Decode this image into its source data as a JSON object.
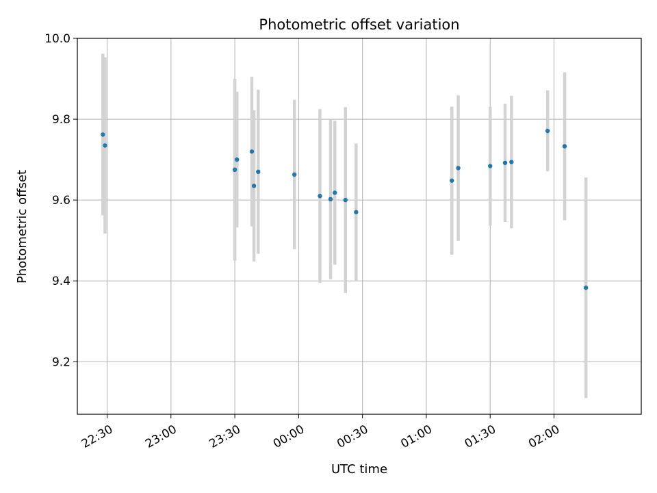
{
  "chart_data": {
    "type": "scatter",
    "title": "Photometric offset variation",
    "xlabel": "UTC time",
    "ylabel": "Photometric offset",
    "x_unit": "time",
    "xlim": [
      "22:16",
      "02:41"
    ],
    "ylim": [
      9.07,
      10.0
    ],
    "x_ticks": [
      "22:30",
      "23:00",
      "23:30",
      "00:00",
      "00:30",
      "01:00",
      "01:30",
      "02:00"
    ],
    "y_ticks": [
      9.2,
      9.4,
      9.6,
      9.8,
      10.0
    ],
    "y_tick_labels": [
      "9.2",
      "9.4",
      "9.6",
      "9.8",
      "10.0"
    ],
    "grid": true,
    "marker_color": "#1f77b4",
    "errorbar_color": "#d3d3d3",
    "points": [
      {
        "x": "22:28",
        "y": 9.762,
        "yerr": 0.2
      },
      {
        "x": "22:29",
        "y": 9.735,
        "yerr": 0.218
      },
      {
        "x": "23:30",
        "y": 9.675,
        "yerr": 0.225
      },
      {
        "x": "23:31",
        "y": 9.7,
        "yerr": 0.168
      },
      {
        "x": "23:38",
        "y": 9.72,
        "yerr": 0.185
      },
      {
        "x": "23:39",
        "y": 9.635,
        "yerr": 0.187
      },
      {
        "x": "23:41",
        "y": 9.67,
        "yerr": 0.203
      },
      {
        "x": "23:58",
        "y": 9.663,
        "yerr": 0.185
      },
      {
        "x": "00:10",
        "y": 9.61,
        "yerr": 0.215
      },
      {
        "x": "00:15",
        "y": 9.602,
        "yerr": 0.198
      },
      {
        "x": "00:17",
        "y": 9.618,
        "yerr": 0.178
      },
      {
        "x": "00:22",
        "y": 9.6,
        "yerr": 0.23
      },
      {
        "x": "00:27",
        "y": 9.57,
        "yerr": 0.17
      },
      {
        "x": "01:12",
        "y": 9.648,
        "yerr": 0.183
      },
      {
        "x": "01:15",
        "y": 9.679,
        "yerr": 0.18
      },
      {
        "x": "01:30",
        "y": 9.684,
        "yerr": 0.147
      },
      {
        "x": "01:37",
        "y": 9.692,
        "yerr": 0.146
      },
      {
        "x": "01:40",
        "y": 9.694,
        "yerr": 0.164
      },
      {
        "x": "01:57",
        "y": 9.771,
        "yerr": 0.1
      },
      {
        "x": "02:05",
        "y": 9.733,
        "yerr": 0.183
      },
      {
        "x": "02:15",
        "y": 9.383,
        "yerr": 0.273
      }
    ]
  }
}
